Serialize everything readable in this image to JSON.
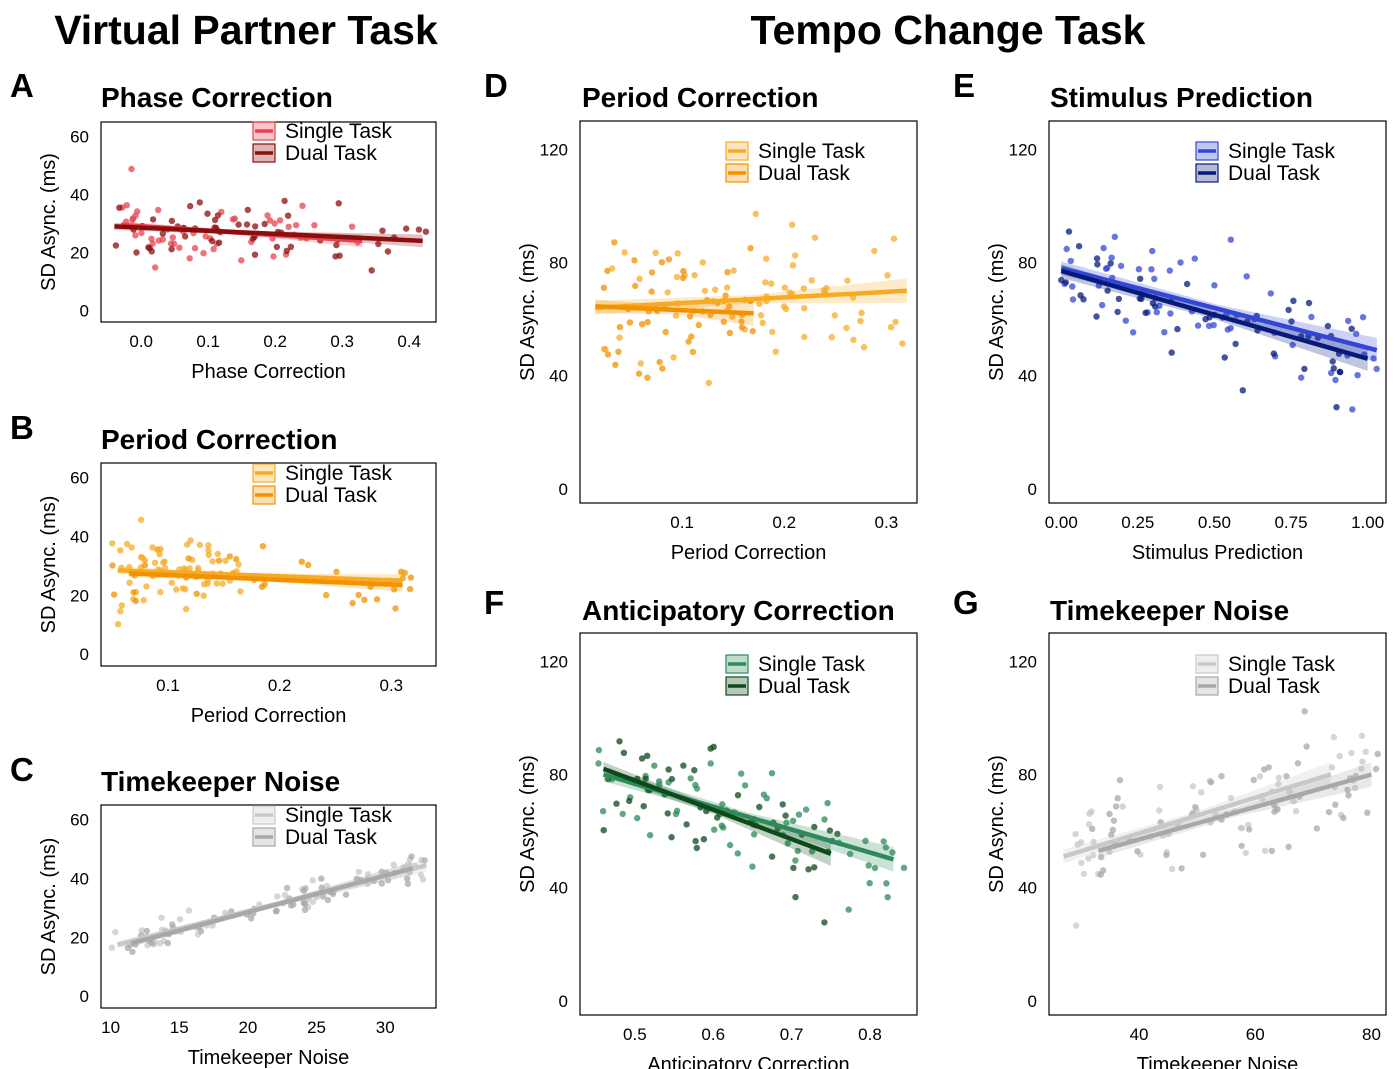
{
  "headers": {
    "left": "Virtual Partner Task",
    "right": "Tempo Change Task"
  },
  "colors": {
    "phase": [
      "#e8424f",
      "#8b0d0d"
    ],
    "period": [
      "#f7ab25",
      "#f39200"
    ],
    "noise": [
      "#c8c8c8",
      "#a8a8a8"
    ],
    "stim": [
      "#3347d6",
      "#071a7a"
    ],
    "antic": [
      "#2e8a5a",
      "#0d4a1a"
    ]
  },
  "chart_data": [
    {
      "id": "A",
      "letter": "A",
      "type": "scatter",
      "title": "Phase Correction",
      "xlabel": "Phase Correction",
      "ylabel": "SD Async. (ms)",
      "xlim": [
        -0.06,
        0.44
      ],
      "ylim": [
        -4,
        65
      ],
      "xticks": [
        0.0,
        0.1,
        0.2,
        0.3,
        0.4
      ],
      "xticklabels": [
        "0.0",
        "0.1",
        "0.2",
        "0.3",
        "0.4"
      ],
      "yticks": [
        0,
        20,
        40,
        60
      ],
      "yticklabels": [
        "0",
        "20",
        "40",
        "60"
      ],
      "series": [
        {
          "name": "Single Task",
          "color": "#e8424f",
          "fit": [
            [
              -0.03,
              29.5
            ],
            [
              0.33,
              24.0
            ]
          ],
          "points": {
            "n": 55,
            "xrange": [
              -0.04,
              0.33
            ],
            "slope": -15,
            "intercept": 29,
            "sd": 5.5,
            "seed": 11
          }
        },
        {
          "name": "Dual Task",
          "color": "#8b0d0d",
          "fit": [
            [
              -0.04,
              29.0
            ],
            [
              0.42,
              24.0
            ]
          ],
          "points": {
            "n": 55,
            "xrange": [
              -0.04,
              0.43
            ],
            "slope": -11,
            "intercept": 28.5,
            "sd": 6,
            "seed": 12
          }
        }
      ]
    },
    {
      "id": "B",
      "letter": "B",
      "type": "scatter",
      "title": "Period Correction",
      "xlabel": "Period Correction",
      "ylabel": "SD Async. (ms)",
      "xlim": [
        0.04,
        0.34
      ],
      "ylim": [
        -4,
        65
      ],
      "xticks": [
        0.1,
        0.2,
        0.3
      ],
      "xticklabels": [
        "0.1",
        "0.2",
        "0.3"
      ],
      "yticks": [
        0,
        20,
        40,
        60
      ],
      "yticklabels": [
        "0",
        "20",
        "40",
        "60"
      ],
      "series": [
        {
          "name": "Single Task",
          "color": "#f7ab25",
          "fit": [
            [
              0.055,
              28.5
            ],
            [
              0.31,
              25.0
            ]
          ],
          "points": {
            "n": 70,
            "xrange": [
              0.05,
              0.17
            ],
            "slope": -14,
            "intercept": 29.5,
            "sd": 6,
            "seed": 21
          }
        },
        {
          "name": "Dual Task",
          "color": "#f39200",
          "fit": [
            [
              0.065,
              27.5
            ],
            [
              0.31,
              23.5
            ]
          ],
          "points": {
            "n": 40,
            "xrange": [
              0.05,
              0.33
            ],
            "slope": -16,
            "intercept": 28.5,
            "sd": 5,
            "seed": 22
          }
        }
      ]
    },
    {
      "id": "C",
      "letter": "C",
      "type": "scatter",
      "title": "Timekeeper Noise",
      "xlabel": "Timekeeper Noise",
      "ylabel": "SD Async. (ms)",
      "xlim": [
        9.3,
        33.7
      ],
      "ylim": [
        -4,
        65
      ],
      "xticks": [
        10,
        15,
        20,
        25,
        30
      ],
      "xticklabels": [
        "10",
        "15",
        "20",
        "25",
        "30"
      ],
      "yticks": [
        0,
        20,
        40,
        60
      ],
      "yticklabels": [
        "0",
        "20",
        "40",
        "60"
      ],
      "series": [
        {
          "name": "Single Task",
          "color": "#c8c8c8",
          "fit": [
            [
              10.5,
              17.5
            ],
            [
              33.0,
              44.5
            ]
          ],
          "points": {
            "n": 55,
            "xrange": [
              10,
              33
            ],
            "slope": 1.2,
            "intercept": 5,
            "sd": 2.5,
            "seed": 31
          }
        },
        {
          "name": "Dual Task",
          "color": "#a8a8a8",
          "fit": [
            [
              11.5,
              18.0
            ],
            [
              32.0,
              43.5
            ]
          ],
          "points": {
            "n": 55,
            "xrange": [
              11,
              33
            ],
            "slope": 1.22,
            "intercept": 4,
            "sd": 2.5,
            "seed": 32
          }
        }
      ]
    },
    {
      "id": "D",
      "letter": "D",
      "type": "scatter",
      "title": "Period Correction",
      "xlabel": "Period Correction",
      "ylabel": "SD Async. (ms)",
      "xlim": [
        0.0,
        0.33
      ],
      "ylim": [
        -5,
        130
      ],
      "xticks": [
        0.1,
        0.2,
        0.3
      ],
      "xticklabels": [
        "0.1",
        "0.2",
        "0.3"
      ],
      "yticks": [
        0,
        40,
        80,
        120
      ],
      "yticklabels": [
        "0",
        "40",
        "80",
        "120"
      ],
      "series": [
        {
          "name": "Single Task",
          "color": "#f7ab25",
          "fit": [
            [
              0.015,
              64.0
            ],
            [
              0.32,
              70.0
            ]
          ],
          "points": {
            "n": 70,
            "xrange": [
              0.02,
              0.32
            ],
            "slope": 20,
            "intercept": 63,
            "sd": 12,
            "seed": 41
          }
        },
        {
          "name": "Dual Task",
          "color": "#f39200",
          "fit": [
            [
              0.015,
              64.5
            ],
            [
              0.17,
              62.0
            ]
          ],
          "points": {
            "n": 50,
            "xrange": [
              0.02,
              0.17
            ],
            "slope": -15,
            "intercept": 65,
            "sd": 12,
            "seed": 42
          }
        }
      ]
    },
    {
      "id": "E",
      "letter": "E",
      "type": "scatter",
      "title": "Stimulus Prediction",
      "xlabel": "Stimulus Prediction",
      "ylabel": "SD Async. (ms)",
      "xlim": [
        -0.04,
        1.06
      ],
      "ylim": [
        -5,
        130
      ],
      "xticks": [
        0.0,
        0.25,
        0.5,
        0.75,
        1.0
      ],
      "xticklabels": [
        "0.00",
        "0.25",
        "0.50",
        "0.75",
        "1.00"
      ],
      "yticks": [
        0,
        40,
        80,
        120
      ],
      "yticklabels": [
        "0",
        "40",
        "80",
        "120"
      ],
      "series": [
        {
          "name": "Single Task",
          "color": "#3347d6",
          "fit": [
            [
              0.0,
              78.0
            ],
            [
              1.03,
              49.0
            ]
          ],
          "points": {
            "n": 60,
            "xrange": [
              0.0,
              1.03
            ],
            "slope": -28,
            "intercept": 77,
            "sd": 9,
            "seed": 51
          }
        },
        {
          "name": "Dual Task",
          "color": "#071a7a",
          "fit": [
            [
              0.0,
              77.0
            ],
            [
              1.0,
              46.0
            ]
          ],
          "points": {
            "n": 50,
            "xrange": [
              0.0,
              1.0
            ],
            "slope": -31,
            "intercept": 76,
            "sd": 9,
            "seed": 52
          }
        }
      ]
    },
    {
      "id": "F",
      "letter": "F",
      "type": "scatter",
      "title": "Anticipatory Correction",
      "xlabel": "Anticipatory Correction",
      "ylabel": "SD Async. (ms)",
      "xlim": [
        0.43,
        0.86
      ],
      "ylim": [
        -5,
        130
      ],
      "xticks": [
        0.5,
        0.6,
        0.7,
        0.8
      ],
      "xticklabels": [
        "0.5",
        "0.6",
        "0.7",
        "0.8"
      ],
      "yticks": [
        0,
        40,
        80,
        120
      ],
      "yticklabels": [
        "0",
        "40",
        "80",
        "120"
      ],
      "series": [
        {
          "name": "Single Task",
          "color": "#2e8a5a",
          "fit": [
            [
              0.46,
              80.0
            ],
            [
              0.83,
              50.0
            ]
          ],
          "points": {
            "n": 60,
            "xrange": [
              0.45,
              0.85
            ],
            "slope": -80,
            "intercept": 117,
            "sd": 10,
            "seed": 61
          }
        },
        {
          "name": "Dual Task",
          "color": "#0d4a1a",
          "fit": [
            [
              0.46,
              82.0
            ],
            [
              0.75,
              52.0
            ]
          ],
          "points": {
            "n": 50,
            "xrange": [
              0.46,
              0.76
            ],
            "slope": -103,
            "intercept": 129,
            "sd": 10,
            "seed": 62
          }
        }
      ]
    },
    {
      "id": "G",
      "letter": "G",
      "type": "scatter",
      "title": "Timekeeper Noise",
      "xlabel": "Timekeeper Noise",
      "ylabel": "SD Async. (ms)",
      "xlim": [
        24.5,
        82.5
      ],
      "ylim": [
        -5,
        130
      ],
      "xticks": [
        40,
        60,
        80
      ],
      "xticklabels": [
        "40",
        "60",
        "80"
      ],
      "yticks": [
        0,
        40,
        80,
        120
      ],
      "yticklabels": [
        "0",
        "40",
        "80",
        "120"
      ],
      "series": [
        {
          "name": "Single Task",
          "color": "#c8c8c8",
          "fit": [
            [
              27.0,
              51.0
            ],
            [
              73.0,
              80.0
            ]
          ],
          "points": {
            "n": 60,
            "xrange": [
              26,
              80
            ],
            "slope": 0.6,
            "intercept": 35,
            "sd": 10,
            "seed": 71
          }
        },
        {
          "name": "Dual Task",
          "color": "#a8a8a8",
          "fit": [
            [
              33.0,
              53.0
            ],
            [
              80.0,
              80.0
            ]
          ],
          "points": {
            "n": 50,
            "xrange": [
              30,
              82
            ],
            "slope": 0.58,
            "intercept": 33,
            "sd": 10,
            "seed": 72
          }
        }
      ]
    }
  ]
}
